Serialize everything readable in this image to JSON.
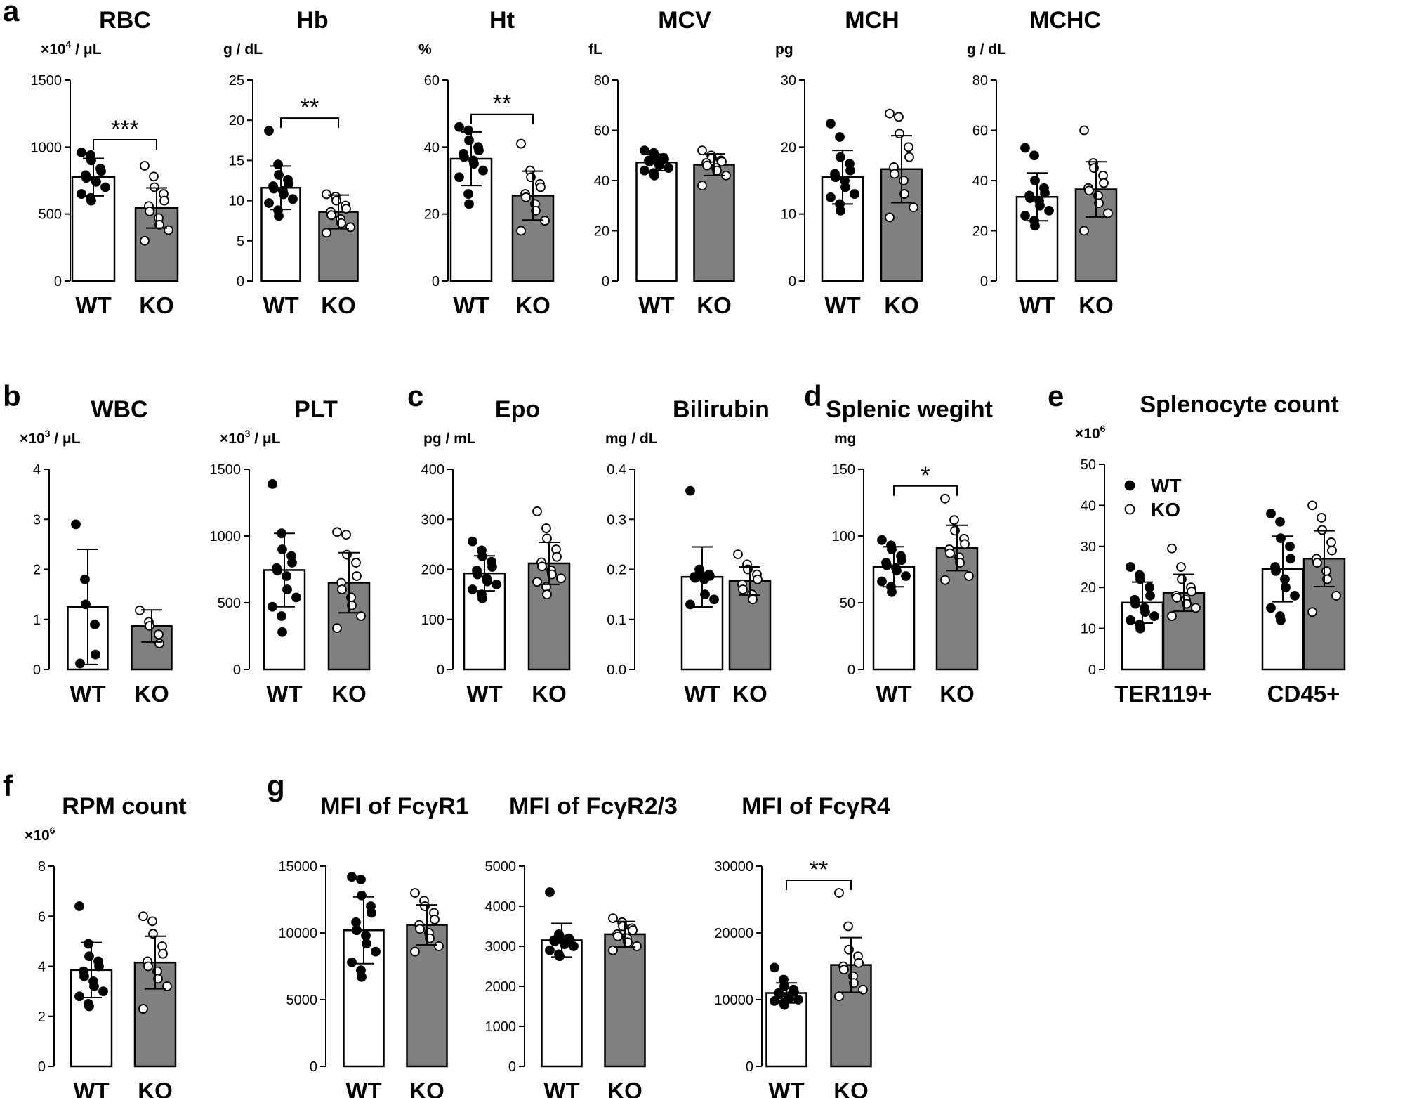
{
  "figure": {
    "panel_letters": [
      "a",
      "b",
      "c",
      "d",
      "e",
      "f",
      "g"
    ],
    "colors": {
      "wt_bar_fill": "#ffffff",
      "ko_bar_fill": "#808080",
      "wt_marker": "#000000",
      "ko_marker": "#ffffff",
      "stroke": "#000000"
    }
  },
  "chart_data": [
    {
      "id": "rbc",
      "panel": "a",
      "type": "bar",
      "title": "RBC",
      "unit_base": "×10",
      "unit_exp": "4",
      "unit_rest": " / μL",
      "categories": [
        "WT",
        "KO"
      ],
      "ylim": [
        0,
        1500
      ],
      "yticks": [
        0,
        500,
        1000,
        1500
      ],
      "tick_labels": [
        "0",
        "500",
        "1000",
        "1500"
      ],
      "means": [
        775,
        545
      ],
      "sd": [
        140,
        150
      ],
      "points": [
        [
          960,
          940,
          900,
          840,
          820,
          790,
          770,
          750,
          740,
          700,
          650,
          620,
          600
        ],
        [
          860,
          780,
          700,
          650,
          600,
          560,
          520,
          470,
          420,
          380,
          300
        ]
      ],
      "significance": "***"
    },
    {
      "id": "hb",
      "panel": "a",
      "type": "bar",
      "title": "Hb",
      "unit": "g / dL",
      "categories": [
        "WT",
        "KO"
      ],
      "ylim": [
        0,
        25
      ],
      "yticks": [
        0,
        5,
        10,
        15,
        20,
        25
      ],
      "tick_labels": [
        "0",
        "5",
        "10",
        "15",
        "20",
        "25"
      ],
      "means": [
        11.6,
        8.6
      ],
      "sd": [
        2.7,
        2.1
      ],
      "points": [
        [
          18.7,
          14.5,
          13.2,
          12.6,
          12.1,
          11.8,
          11.5,
          11.2,
          10.8,
          10.2,
          9.7,
          8.8,
          8.1
        ],
        [
          10.8,
          10.5,
          10.0,
          9.4,
          9.0,
          8.6,
          8.2,
          7.7,
          7.2,
          6.7,
          6.0
        ]
      ],
      "significance": "**"
    },
    {
      "id": "ht",
      "panel": "a",
      "type": "bar",
      "title": "Ht",
      "unit": "%",
      "categories": [
        "WT",
        "KO"
      ],
      "ylim": [
        0,
        60
      ],
      "yticks": [
        0,
        20,
        40,
        60
      ],
      "tick_labels": [
        "0",
        "20",
        "40",
        "60"
      ],
      "means": [
        36.5,
        25.5
      ],
      "sd": [
        8.0,
        7.3
      ],
      "points": [
        [
          46,
          45,
          42,
          40,
          39,
          38,
          37,
          36,
          35,
          33,
          31,
          26,
          23
        ],
        [
          41,
          33,
          31,
          29,
          28,
          26,
          25,
          23,
          21,
          18,
          15
        ]
      ],
      "significance": "**"
    },
    {
      "id": "mcv",
      "panel": "a",
      "type": "bar",
      "title": "MCV",
      "unit": "fL",
      "categories": [
        "WT",
        "KO"
      ],
      "ylim": [
        0,
        80
      ],
      "yticks": [
        0,
        20,
        40,
        60,
        80
      ],
      "tick_labels": [
        "0",
        "20",
        "40",
        "60",
        "80"
      ],
      "means": [
        47.2,
        46.3
      ],
      "sd": [
        3.3,
        4.3
      ],
      "points": [
        [
          52,
          51,
          50,
          49,
          48.5,
          48,
          47.5,
          47,
          46,
          45,
          44,
          43,
          42
        ],
        [
          52,
          50,
          49,
          48,
          47.5,
          47,
          46,
          45,
          44,
          42,
          38
        ]
      ],
      "significance": ""
    },
    {
      "id": "mch",
      "panel": "a",
      "type": "bar",
      "title": "MCH",
      "unit": "pg",
      "categories": [
        "WT",
        "KO"
      ],
      "ylim": [
        0,
        30
      ],
      "yticks": [
        0,
        10,
        20,
        30
      ],
      "tick_labels": [
        "0",
        "10",
        "20",
        "30"
      ],
      "means": [
        15.5,
        16.7
      ],
      "sd": [
        4.0,
        5.0
      ],
      "points": [
        [
          23.5,
          21.5,
          18.5,
          17.5,
          16.5,
          16,
          15.5,
          15,
          14,
          13,
          12.5,
          11.5,
          10.5
        ],
        [
          25,
          24.5,
          22,
          20,
          18.5,
          17,
          16,
          15,
          13,
          11,
          9.5
        ]
      ],
      "significance": ""
    },
    {
      "id": "mchc",
      "panel": "a",
      "type": "bar",
      "title": "MCHC",
      "unit": "g / dL",
      "categories": [
        "WT",
        "KO"
      ],
      "ylim": [
        0,
        80
      ],
      "yticks": [
        0,
        20,
        40,
        60,
        80
      ],
      "tick_labels": [
        "0",
        "20",
        "40",
        "60",
        "80"
      ],
      "means": [
        33.5,
        36.5
      ],
      "sd": [
        9.5,
        11.0
      ],
      "points": [
        [
          53,
          50,
          40,
          37,
          35,
          34,
          33,
          32,
          30,
          28,
          26,
          24,
          22
        ],
        [
          60,
          47,
          45,
          42,
          39,
          37,
          36,
          34,
          31,
          27,
          20
        ]
      ],
      "significance": ""
    },
    {
      "id": "wbc",
      "panel": "b",
      "type": "bar",
      "title": "WBC",
      "unit_base": "×10",
      "unit_exp": "3",
      "unit_rest": " / μL",
      "categories": [
        "WT",
        "KO"
      ],
      "ylim": [
        0,
        4
      ],
      "yticks": [
        0,
        1,
        2,
        3,
        4
      ],
      "tick_labels": [
        "0",
        "1",
        "2",
        "3",
        "4"
      ],
      "means": [
        1.25,
        0.87
      ],
      "sd": [
        1.15,
        0.32
      ],
      "points": [
        [
          2.9,
          1.8,
          1.3,
          0.9,
          0.3,
          0.12
        ],
        [
          1.18,
          0.95,
          0.87,
          0.7,
          0.52
        ]
      ],
      "significance": ""
    },
    {
      "id": "plt",
      "panel": "b",
      "type": "bar",
      "title": "PLT",
      "unit_base": "×10",
      "unit_exp": "3",
      "unit_rest": " / μL",
      "categories": [
        "WT",
        "KO"
      ],
      "ylim": [
        0,
        1500
      ],
      "yticks": [
        0,
        500,
        1000,
        1500
      ],
      "tick_labels": [
        "0",
        "500",
        "1000",
        "1500"
      ],
      "means": [
        745,
        650
      ],
      "sd": [
        275,
        225
      ],
      "points": [
        [
          1390,
          1020,
          900,
          850,
          800,
          760,
          740,
          700,
          600,
          540,
          470,
          400,
          280
        ],
        [
          1030,
          1010,
          860,
          800,
          700,
          650,
          600,
          540,
          480,
          400,
          310
        ]
      ],
      "significance": ""
    },
    {
      "id": "epo",
      "panel": "c",
      "type": "bar",
      "title": "Epo",
      "unit": "pg / mL",
      "categories": [
        "WT",
        "KO"
      ],
      "ylim": [
        0,
        400
      ],
      "yticks": [
        0,
        100,
        200,
        300,
        400
      ],
      "tick_labels": [
        "0",
        "100",
        "200",
        "300",
        "400"
      ],
      "means": [
        192,
        212
      ],
      "sd": [
        35,
        42
      ],
      "points": [
        [
          256,
          238,
          226,
          215,
          205,
          198,
          190,
          182,
          176,
          170,
          160,
          150,
          142
        ],
        [
          316,
          282,
          262,
          240,
          225,
          214,
          206,
          198,
          190,
          182,
          175,
          165,
          150
        ]
      ],
      "significance": ""
    },
    {
      "id": "bilirubin",
      "panel": "c",
      "type": "bar",
      "title": "Bilirubin",
      "unit": "mg / dL",
      "categories": [
        "WT",
        "KO"
      ],
      "ylim": [
        0,
        0.4
      ],
      "yticks": [
        0,
        0.1,
        0.2,
        0.3,
        0.4
      ],
      "tick_labels": [
        "0.0",
        "0.1",
        "0.2",
        "0.3",
        "0.4"
      ],
      "means": [
        0.185,
        0.177
      ],
      "sd": [
        0.06,
        0.028
      ],
      "points": [
        [
          0.357,
          0.2,
          0.192,
          0.19,
          0.187,
          0.185,
          0.183,
          0.18,
          0.15,
          0.14,
          0.13
        ],
        [
          0.23,
          0.21,
          0.2,
          0.19,
          0.18,
          0.17,
          0.16,
          0.15,
          0.14
        ]
      ],
      "significance": ""
    },
    {
      "id": "splenic_weight",
      "panel": "d",
      "type": "bar",
      "title": "Splenic wegiht",
      "unit": "mg",
      "categories": [
        "WT",
        "KO"
      ],
      "ylim": [
        0,
        150
      ],
      "yticks": [
        0,
        50,
        100,
        150
      ],
      "tick_labels": [
        "0",
        "50",
        "100",
        "150"
      ],
      "means": [
        77,
        91
      ],
      "sd": [
        15,
        17
      ],
      "points": [
        [
          97,
          93,
          90,
          85,
          82,
          80,
          78,
          76,
          74,
          70,
          66,
          62,
          58
        ],
        [
          128,
          112,
          104,
          98,
          94,
          90,
          87,
          84,
          80,
          70,
          67
        ]
      ],
      "significance": "*"
    },
    {
      "id": "splenocyte_count",
      "panel": "e",
      "type": "bar",
      "title": "Splenocyte count",
      "unit_base": "×10",
      "unit_exp": "6",
      "unit_rest": "",
      "categories": [
        "TER119+",
        "CD45+"
      ],
      "series_names": [
        "WT",
        "KO"
      ],
      "ylim": [
        0,
        50
      ],
      "yticks": [
        0,
        10,
        20,
        30,
        40,
        50
      ],
      "tick_labels": [
        "0",
        "10",
        "20",
        "30",
        "40",
        "50"
      ],
      "means": [
        16.3,
        18.7,
        24.5,
        27.0
      ],
      "sd": [
        5.0,
        4.5,
        8.0,
        6.8
      ],
      "points": [
        [
          25,
          23,
          22,
          20,
          18,
          17,
          16,
          15,
          14,
          13,
          12,
          11,
          10
        ],
        [
          29.5,
          25,
          22,
          20,
          19,
          18,
          17.5,
          17,
          16,
          15,
          13
        ],
        [
          38,
          36,
          32,
          30,
          27,
          25,
          24,
          22,
          20,
          18,
          15,
          13,
          12
        ],
        [
          40,
          37,
          34,
          31,
          29,
          27,
          26,
          24,
          22,
          18,
          14
        ]
      ],
      "legend_labels": [
        "WT",
        "KO"
      ],
      "significance": ""
    },
    {
      "id": "rpm_count",
      "panel": "f",
      "type": "bar",
      "title": "RPM count",
      "unit_base": "×10",
      "unit_exp": "6",
      "unit_rest": "",
      "categories": [
        "WT",
        "KO"
      ],
      "ylim": [
        0,
        8
      ],
      "yticks": [
        0,
        2,
        4,
        6,
        8
      ],
      "tick_labels": [
        "0",
        "2",
        "4",
        "6",
        "8"
      ],
      "means": [
        3.85,
        4.15
      ],
      "sd": [
        1.1,
        1.05
      ],
      "points": [
        [
          6.4,
          4.9,
          4.4,
          4.2,
          4.0,
          3.8,
          3.6,
          3.4,
          3.2,
          3.0,
          2.8,
          2.5,
          2.4
        ],
        [
          6.0,
          5.8,
          5.3,
          4.8,
          4.5,
          4.2,
          4.0,
          3.8,
          3.5,
          3.2,
          2.3
        ]
      ],
      "significance": ""
    },
    {
      "id": "mfi_fcgr1",
      "panel": "g",
      "type": "bar",
      "title": "MFI of FcγR1",
      "unit": "",
      "categories": [
        "WT",
        "KO"
      ],
      "ylim": [
        0,
        15000
      ],
      "yticks": [
        0,
        5000,
        10000,
        15000
      ],
      "tick_labels": [
        "0",
        "5000",
        "10000",
        "15000"
      ],
      "means": [
        10200,
        10600
      ],
      "sd": [
        2500,
        1500
      ],
      "points": [
        [
          14200,
          14000,
          12800,
          12000,
          11500,
          10800,
          10200,
          9800,
          9200,
          8600,
          7800,
          7200,
          6700
        ],
        [
          13000,
          12400,
          12000,
          11500,
          11000,
          10600,
          10300,
          10000,
          9600,
          9000,
          8600
        ]
      ],
      "significance": ""
    },
    {
      "id": "mfi_fcgr23",
      "panel": "g",
      "type": "bar",
      "title": "MFI of FcγR2/3",
      "unit": "",
      "categories": [
        "WT",
        "KO"
      ],
      "ylim": [
        0,
        5000
      ],
      "yticks": [
        0,
        1000,
        2000,
        3000,
        4000,
        5000
      ],
      "tick_labels": [
        "0",
        "1000",
        "2000",
        "3000",
        "4000",
        "5000"
      ],
      "means": [
        3150,
        3300
      ],
      "sd": [
        420,
        320
      ],
      "points": [
        [
          4350,
          3300,
          3250,
          3200,
          3180,
          3150,
          3120,
          3100,
          3050,
          3000,
          2900,
          2800,
          2750
        ],
        [
          3700,
          3600,
          3500,
          3450,
          3400,
          3300,
          3250,
          3200,
          3100,
          3000,
          2900
        ]
      ],
      "significance": ""
    },
    {
      "id": "mfi_fcgr4",
      "panel": "g",
      "type": "bar",
      "title": "MFI of FcγR4",
      "unit": "",
      "categories": [
        "WT",
        "KO"
      ],
      "ylim": [
        0,
        30000
      ],
      "yticks": [
        0,
        10000,
        20000,
        30000
      ],
      "tick_labels": [
        "0",
        "10000",
        "20000",
        "30000"
      ],
      "means": [
        11000,
        15200
      ],
      "sd": [
        1500,
        4100
      ],
      "points": [
        [
          14800,
          13000,
          12000,
          11500,
          11200,
          11000,
          10800,
          10500,
          10200,
          10000,
          9800,
          9500,
          9200
        ],
        [
          26000,
          21000,
          17500,
          16500,
          15500,
          15000,
          14500,
          13500,
          12500,
          11500,
          10500
        ]
      ],
      "significance": "**"
    }
  ]
}
